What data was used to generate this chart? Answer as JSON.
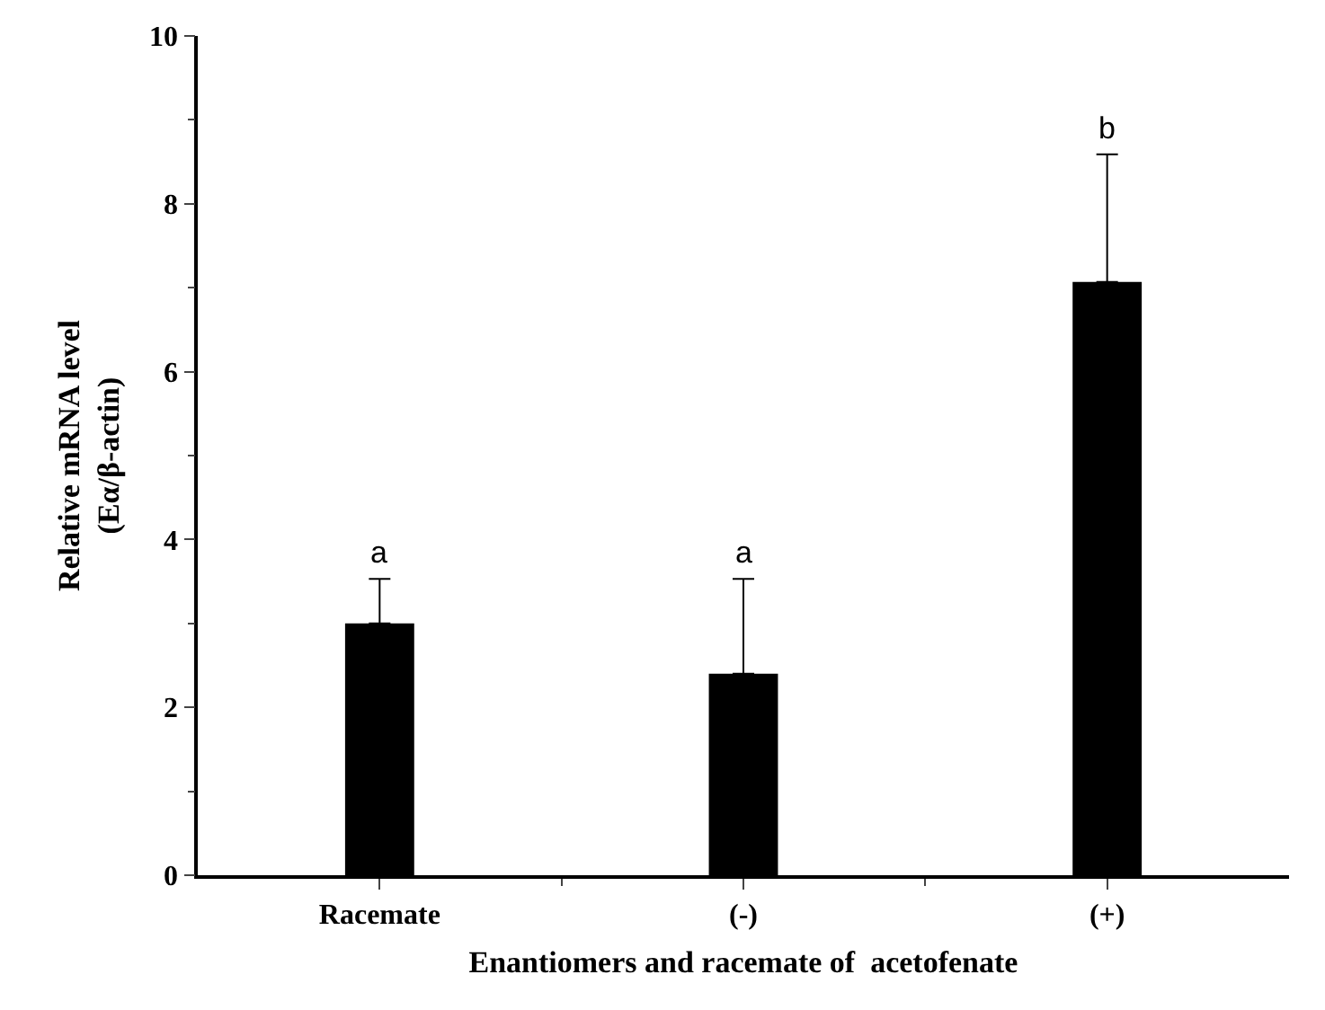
{
  "chart_data": {
    "type": "bar",
    "xlabel": "Enantiomers and racemate of  acetofenate",
    "ylabel": "Relative mRNA level\n(Eα/β-actin)",
    "categories": [
      "Racemate",
      "(-)",
      "(+)"
    ],
    "series": [
      {
        "color": "#000000",
        "values": [
          3.0,
          2.4,
          7.07
        ],
        "errors": [
          [
            3.0,
            3.53
          ],
          [
            2.4,
            3.53
          ],
          [
            7.07,
            8.59
          ]
        ]
      }
    ],
    "ylim": [
      0,
      10
    ],
    "yticks": [
      0,
      2,
      4,
      6,
      8,
      10
    ],
    "grid": false,
    "annotations": [
      {
        "text": "a",
        "x": "Racemate",
        "y": 3.53
      },
      {
        "text": "a",
        "x": "(-)",
        "y": 3.53
      },
      {
        "text": "b",
        "x": "(+)",
        "y": 8.59
      }
    ]
  }
}
